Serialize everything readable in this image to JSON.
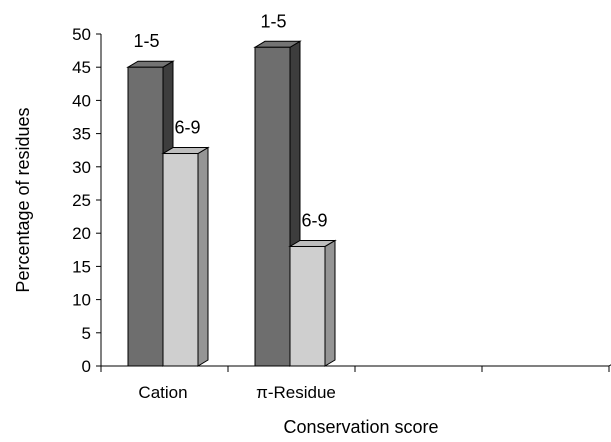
{
  "chart_data": {
    "type": "bar",
    "style": "3d-clustered-column",
    "categories": [
      "Cation",
      "π-Residue"
    ],
    "series": [
      {
        "values": [
          45,
          48
        ],
        "data_labels": [
          "1-5",
          "1-5"
        ],
        "color": "#6e6e6e"
      },
      {
        "values": [
          32,
          18
        ],
        "data_labels": [
          "6-9",
          "6-9"
        ],
        "color": "#cfcfcf"
      }
    ],
    "ylabel": "Percentage of residues",
    "xlabel": "Conservation score",
    "ylim": [
      0,
      50
    ],
    "yticks": [
      "0",
      "5",
      "10",
      "15",
      "20",
      "25",
      "30",
      "35",
      "40",
      "45",
      "50"
    ],
    "grid": false,
    "legend": "none",
    "empty_category_slots": 2
  }
}
